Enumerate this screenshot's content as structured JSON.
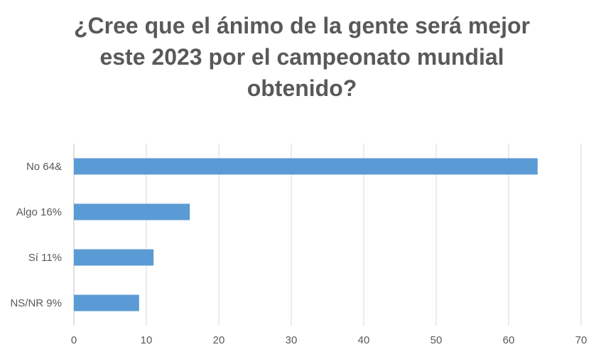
{
  "chart_data": {
    "type": "bar",
    "orientation": "horizontal",
    "title_lines": [
      "¿Cree que el ánimo de la gente será mejor",
      "este 2023 por el campeonato mundial",
      "obtenido?"
    ],
    "categories": [
      "No  64&",
      "Algo  16%",
      "Sí  11%",
      "NS/NR  9%"
    ],
    "values": [
      64,
      16,
      11,
      9
    ],
    "xlim": [
      0,
      70
    ],
    "xticks": [
      0,
      10,
      20,
      30,
      40,
      50,
      60,
      70
    ],
    "grid": true,
    "legend": "none",
    "colors": {
      "bar": "#5b9bd5",
      "grid": "#d9d9d9",
      "text": "#595959",
      "axis": "#bfbfbf"
    }
  }
}
